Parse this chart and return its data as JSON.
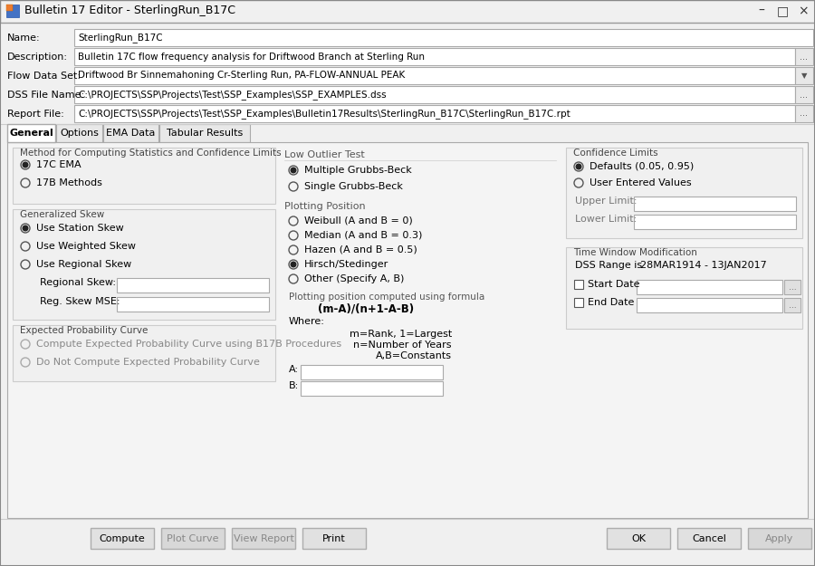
{
  "title": "Bulletin 17 Editor - SterlingRun_B17C",
  "bg_color": "#f0f0f0",
  "header_fields": [
    {
      "label": "Name:",
      "value": "SterlingRun_B17C",
      "has_button": false,
      "has_dropdown": false
    },
    {
      "label": "Description:",
      "value": "Bulletin 17C flow frequency analysis for Driftwood Branch at Sterling Run",
      "has_button": true,
      "has_dropdown": false
    },
    {
      "label": "Flow Data Set:",
      "value": "Driftwood Br Sinnemahoning Cr-Sterling Run, PA-FLOW-ANNUAL PEAK",
      "has_button": false,
      "has_dropdown": true
    },
    {
      "label": "DSS File Name:",
      "value": "C:\\PROJECTS\\SSP\\Projects\\Test\\SSP_Examples\\SSP_EXAMPLES.dss",
      "has_button": true,
      "has_dropdown": false
    },
    {
      "label": "Report File:",
      "value": "C:\\PROJECTS\\SSP\\Projects\\Test\\SSP_Examples\\Bulletin17Results\\SterlingRun_B17C\\SterlingRun_B17C.rpt",
      "has_button": true,
      "has_dropdown": false
    }
  ],
  "tabs": [
    "General",
    "Options",
    "EMA Data",
    "Tabular Results"
  ],
  "active_tab": "General",
  "section1_title": "Method for Computing Statistics and Confidence Limits",
  "radio_group1": [
    {
      "label": "17C EMA",
      "selected": true
    },
    {
      "label": "17B Methods",
      "selected": false
    }
  ],
  "skew_title": "Generalized Skew",
  "radio_skew": [
    {
      "label": "Use Station Skew",
      "selected": true
    },
    {
      "label": "Use Weighted Skew",
      "selected": false
    },
    {
      "label": "Use Regional Skew",
      "selected": false
    }
  ],
  "skew_fields": [
    "Regional Skew:",
    "Reg. Skew MSE:"
  ],
  "expected_title": "Expected Probability Curve",
  "radio_expected": [
    {
      "label": "Compute Expected Probability Curve using B17B Procedures",
      "enabled": false
    },
    {
      "label": "Do Not Compute Expected Probability Curve",
      "enabled": false
    }
  ],
  "section2_title": "Low Outlier Test",
  "radio_outlier": [
    {
      "label": "Multiple Grubbs-Beck",
      "selected": true
    },
    {
      "label": "Single Grubbs-Beck",
      "selected": false
    }
  ],
  "plotting_title": "Plotting Position",
  "radio_plotting": [
    {
      "label": "Weibull (A and B = 0)",
      "selected": false
    },
    {
      "label": "Median (A and B = 0.3)",
      "selected": false
    },
    {
      "label": "Hazen (A and B = 0.5)",
      "selected": false
    },
    {
      "label": "Hirsch/Stedinger",
      "selected": true
    },
    {
      "label": "Other (Specify A, B)",
      "selected": false
    }
  ],
  "formula_line1": "Plotting position computed using formula",
  "formula_line2": "(m-A)/(n+1-A-B)",
  "where_label": "Where:",
  "formula_detail": [
    "m=Rank, 1=Largest",
    "n=Number of Years",
    "A,B=Constants"
  ],
  "ab_labels": [
    "A:",
    "B:"
  ],
  "section3_title": "Confidence Limits",
  "radio_confidence": [
    {
      "label": "Defaults (0.05, 0.95)",
      "selected": true
    },
    {
      "label": "User Entered Values",
      "selected": false
    }
  ],
  "limit_labels": [
    "Upper Limit:",
    "Lower Limit:"
  ],
  "time_window_title": "Time Window Modification",
  "dss_range_label": "DSS Range is",
  "dss_range_value": "28MAR1914 - 13JAN2017",
  "date_fields": [
    "Start Date",
    "End Date"
  ],
  "bottom_left_btns": [
    {
      "label": "Compute",
      "enabled": true
    },
    {
      "label": "Plot Curve",
      "enabled": false
    },
    {
      "label": "View Report",
      "enabled": false
    },
    {
      "label": "Print",
      "enabled": true
    }
  ],
  "bottom_right_btns": [
    {
      "label": "OK",
      "enabled": true
    },
    {
      "label": "Cancel",
      "enabled": true
    },
    {
      "label": "Apply",
      "enabled": false
    }
  ]
}
